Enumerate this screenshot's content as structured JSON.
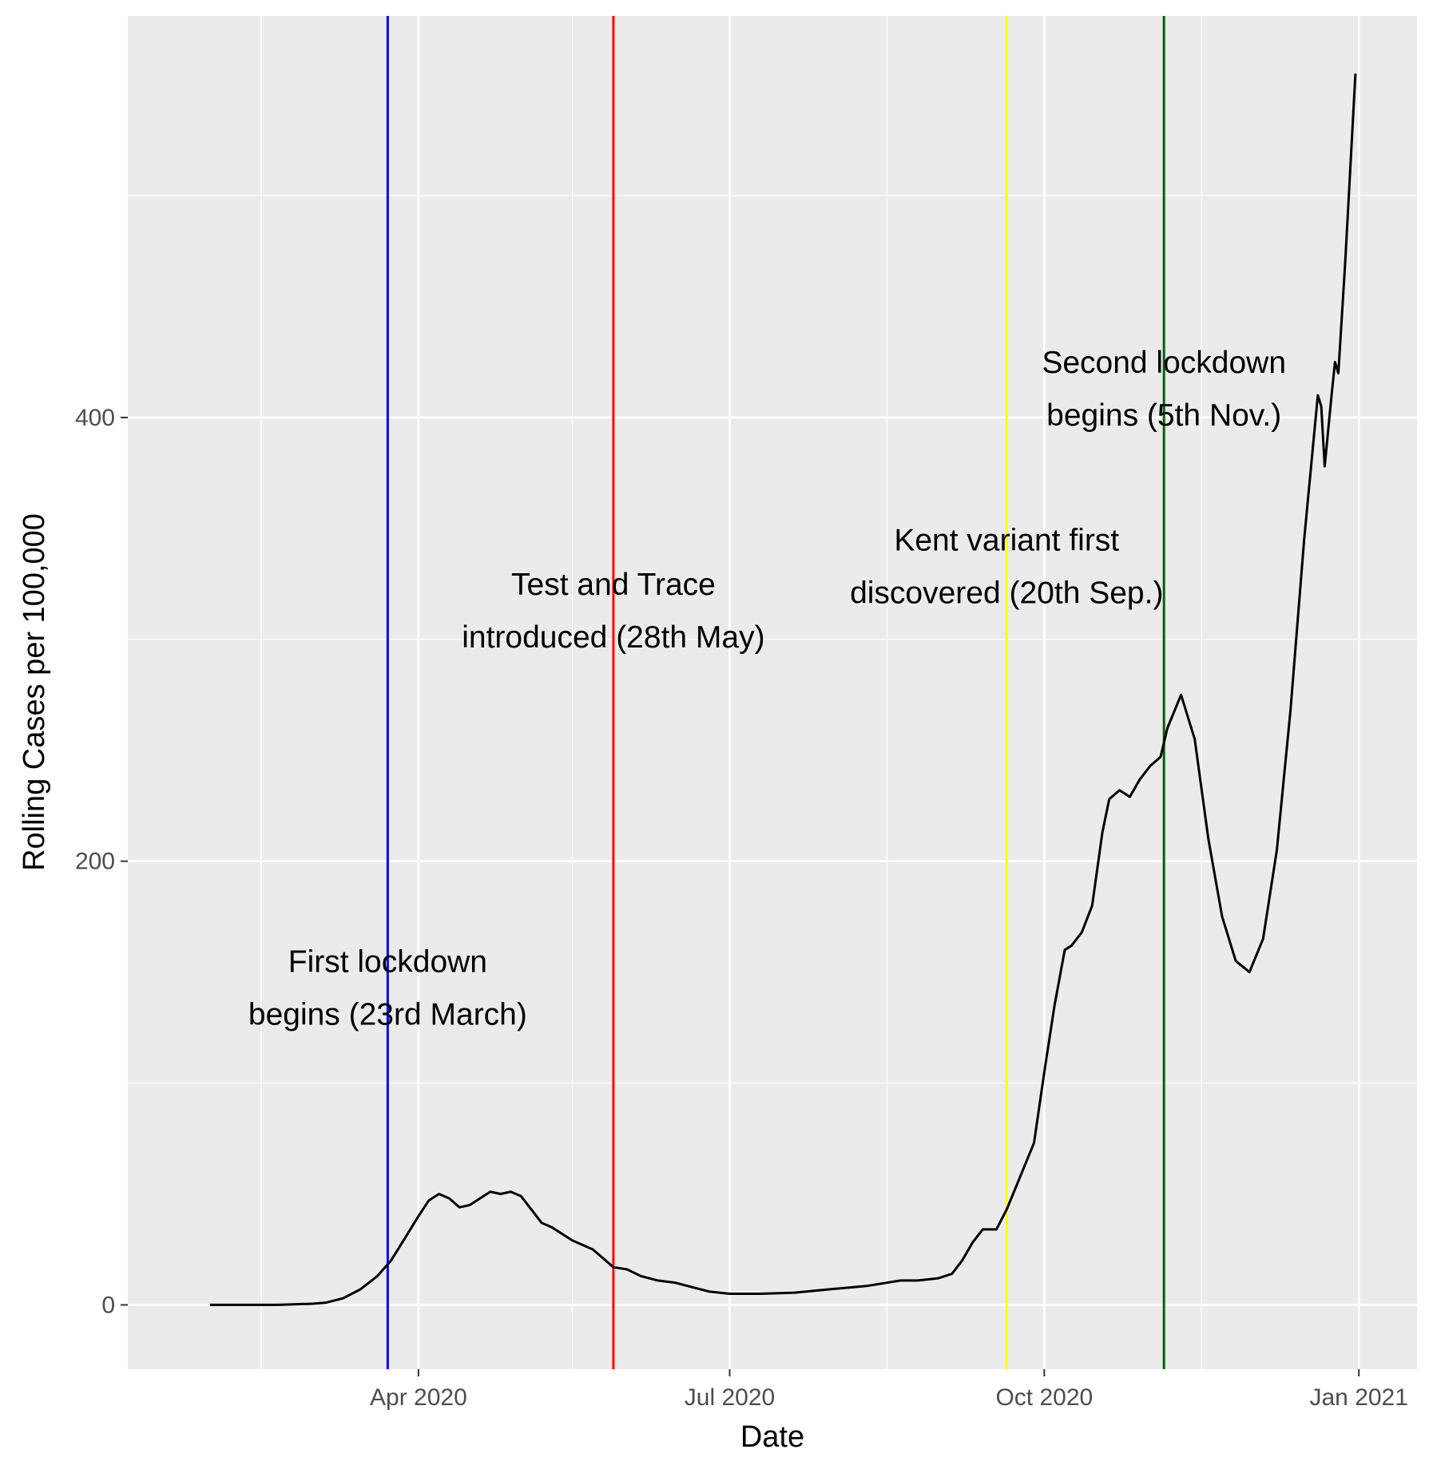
{
  "chart_data": {
    "type": "line",
    "title": "",
    "xlabel": "Date",
    "ylabel": "Rolling Cases per 100,000",
    "xlim": [
      "2020-01-07",
      "2021-01-18"
    ],
    "ylim": [
      -29,
      581
    ],
    "grid": true,
    "x_ticks": [
      {
        "date": "2020-04-01",
        "label": "Apr 2020"
      },
      {
        "date": "2020-07-01",
        "label": "Jul 2020"
      },
      {
        "date": "2020-10-01",
        "label": "Oct 2020"
      },
      {
        "date": "2021-01-01",
        "label": "Jan 2021"
      }
    ],
    "x_minor_ticks": [
      "2020-02-15",
      "2020-05-16",
      "2020-08-16",
      "2020-11-16"
    ],
    "y_ticks": [
      {
        "value": 0,
        "label": "0"
      },
      {
        "value": 200,
        "label": "200"
      },
      {
        "value": 400,
        "label": "400"
      }
    ],
    "y_minor_ticks": [
      100,
      300,
      500
    ],
    "colors": {
      "panel": "#ebebeb",
      "grid": "#ffffff",
      "line": "#000000",
      "first_lockdown": "#0000ff",
      "test_and_trace": "#ff0000",
      "kent_variant": "#ffff00",
      "second_lockdown": "#006400"
    },
    "series": [
      {
        "points": [
          [
            "2020-01-31",
            0
          ],
          [
            "2020-02-10",
            0
          ],
          [
            "2020-02-20",
            0
          ],
          [
            "2020-03-01",
            0.5
          ],
          [
            "2020-03-05",
            1
          ],
          [
            "2020-03-10",
            3
          ],
          [
            "2020-03-15",
            7
          ],
          [
            "2020-03-20",
            13
          ],
          [
            "2020-03-24",
            20
          ],
          [
            "2020-03-28",
            30
          ],
          [
            "2020-04-01",
            40
          ],
          [
            "2020-04-04",
            47
          ],
          [
            "2020-04-07",
            50
          ],
          [
            "2020-04-10",
            48
          ],
          [
            "2020-04-13",
            44
          ],
          [
            "2020-04-16",
            45
          ],
          [
            "2020-04-19",
            48
          ],
          [
            "2020-04-22",
            51
          ],
          [
            "2020-04-25",
            50
          ],
          [
            "2020-04-28",
            51
          ],
          [
            "2020-05-01",
            49
          ],
          [
            "2020-05-04",
            43
          ],
          [
            "2020-05-07",
            37
          ],
          [
            "2020-05-10",
            35
          ],
          [
            "2020-05-13",
            32
          ],
          [
            "2020-05-16",
            29
          ],
          [
            "2020-05-19",
            27
          ],
          [
            "2020-05-22",
            25
          ],
          [
            "2020-05-25",
            21
          ],
          [
            "2020-05-28",
            17
          ],
          [
            "2020-06-01",
            16
          ],
          [
            "2020-06-05",
            13
          ],
          [
            "2020-06-10",
            11
          ],
          [
            "2020-06-15",
            10
          ],
          [
            "2020-06-20",
            8
          ],
          [
            "2020-06-25",
            6
          ],
          [
            "2020-07-01",
            5
          ],
          [
            "2020-07-10",
            5
          ],
          [
            "2020-07-20",
            5.5
          ],
          [
            "2020-07-30",
            7
          ],
          [
            "2020-08-10",
            8.5
          ],
          [
            "2020-08-20",
            11
          ],
          [
            "2020-08-25",
            11
          ],
          [
            "2020-08-31",
            12
          ],
          [
            "2020-09-04",
            14
          ],
          [
            "2020-09-07",
            20
          ],
          [
            "2020-09-10",
            28
          ],
          [
            "2020-09-13",
            34
          ],
          [
            "2020-09-17",
            34
          ],
          [
            "2020-09-20",
            43
          ],
          [
            "2020-09-24",
            58
          ],
          [
            "2020-09-28",
            73
          ],
          [
            "2020-10-01",
            105
          ],
          [
            "2020-10-04",
            135
          ],
          [
            "2020-10-07",
            160
          ],
          [
            "2020-10-09",
            162
          ],
          [
            "2020-10-12",
            168
          ],
          [
            "2020-10-15",
            180
          ],
          [
            "2020-10-18",
            213
          ],
          [
            "2020-10-20",
            228
          ],
          [
            "2020-10-23",
            232
          ],
          [
            "2020-10-26",
            229
          ],
          [
            "2020-10-29",
            237
          ],
          [
            "2020-11-01",
            243
          ],
          [
            "2020-11-04",
            247
          ],
          [
            "2020-11-06",
            260
          ],
          [
            "2020-11-10",
            275
          ],
          [
            "2020-11-14",
            255
          ],
          [
            "2020-11-18",
            210
          ],
          [
            "2020-11-22",
            175
          ],
          [
            "2020-11-26",
            155
          ],
          [
            "2020-11-30",
            150
          ],
          [
            "2020-12-04",
            165
          ],
          [
            "2020-12-08",
            205
          ],
          [
            "2020-12-12",
            268
          ],
          [
            "2020-12-16",
            345
          ],
          [
            "2020-12-20",
            410
          ],
          [
            "2020-12-21",
            405
          ],
          [
            "2020-12-22",
            378
          ],
          [
            "2020-12-24",
            410
          ],
          [
            "2020-12-25",
            425
          ],
          [
            "2020-12-26",
            420
          ],
          [
            "2020-12-28",
            470
          ],
          [
            "2020-12-31",
            555
          ]
        ]
      }
    ],
    "vlines": [
      {
        "date": "2020-03-23",
        "color_key": "first_lockdown"
      },
      {
        "date": "2020-05-28",
        "color_key": "test_and_trace"
      },
      {
        "date": "2020-09-20",
        "color_key": "kent_variant"
      },
      {
        "date": "2020-11-05",
        "color_key": "second_lockdown"
      }
    ],
    "annotations": [
      {
        "date": "2020-03-23",
        "value": 140,
        "lines": [
          "First lockdown",
          "begins (23rd March)"
        ]
      },
      {
        "date": "2020-05-28",
        "value": 310,
        "lines": [
          "Test and Trace",
          "introduced (28th May)"
        ]
      },
      {
        "date": "2020-09-20",
        "value": 330,
        "lines": [
          "Kent variant first",
          "discovered (20th Sep.)"
        ]
      },
      {
        "date": "2020-11-05",
        "value": 410,
        "lines": [
          "Second lockdown",
          "begins (5th Nov.)"
        ]
      }
    ]
  }
}
